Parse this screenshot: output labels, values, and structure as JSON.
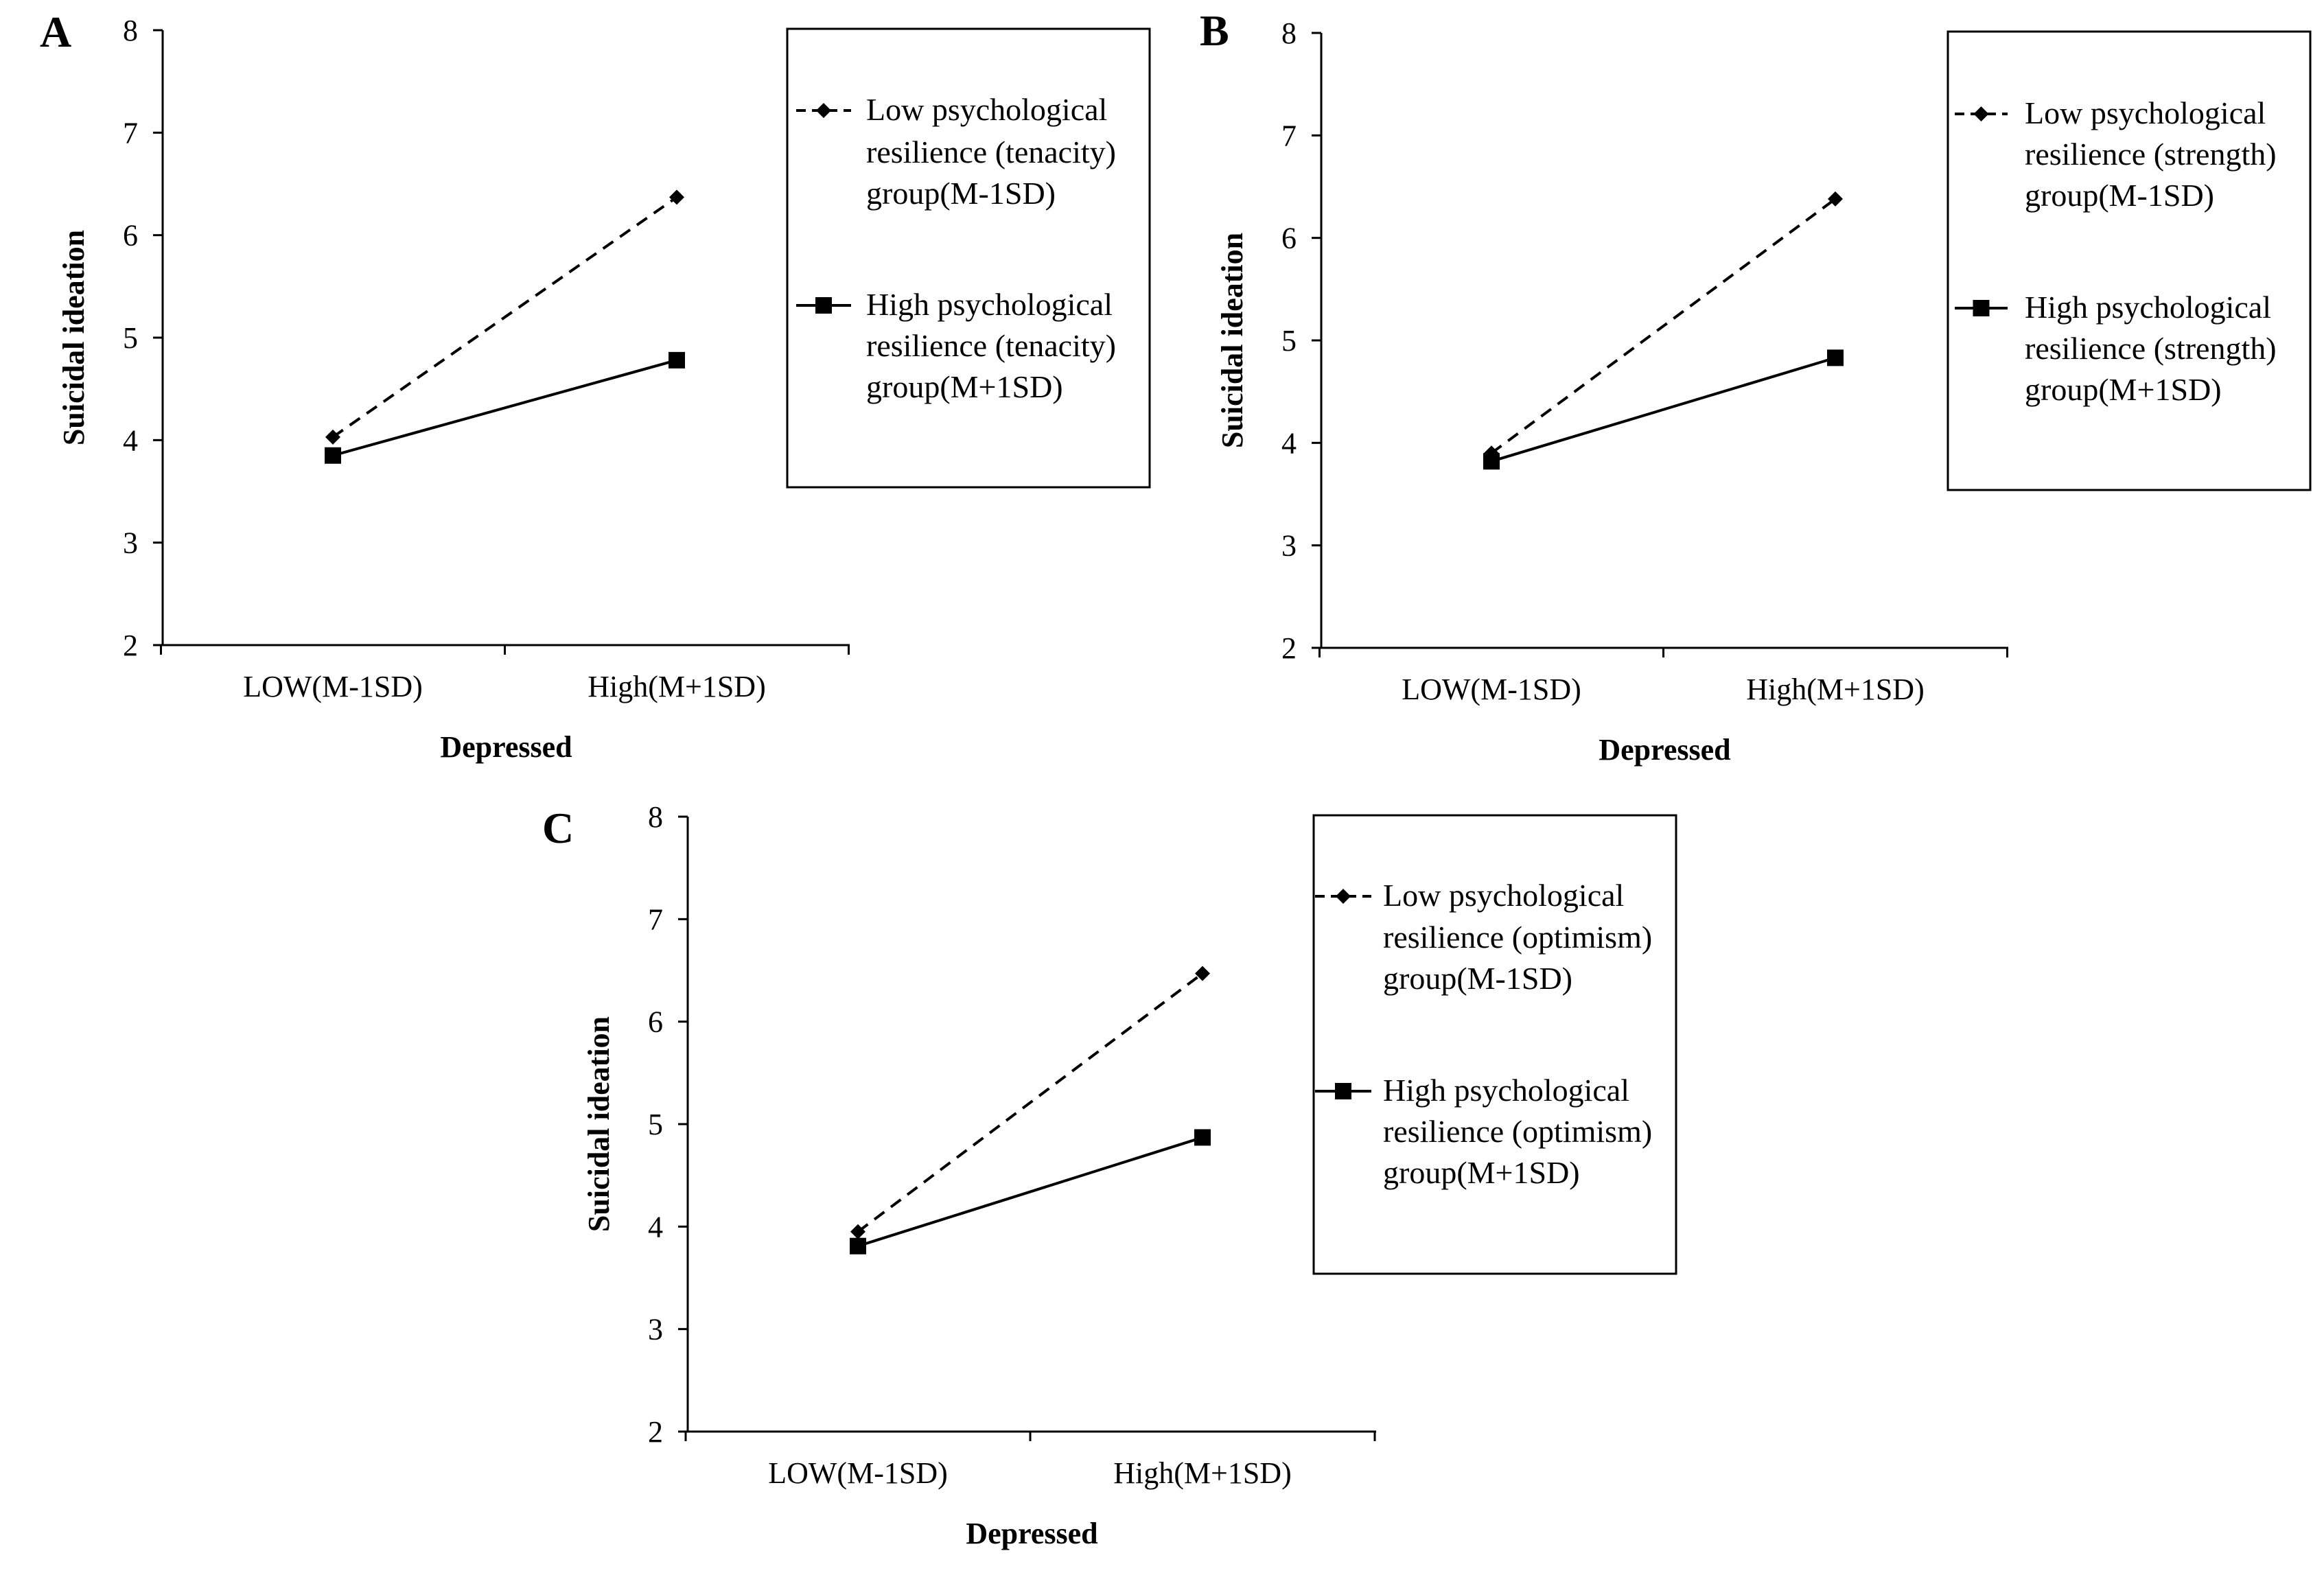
{
  "chart_data": [
    {
      "type": "line",
      "panel": "A",
      "xlabel": "Depressed",
      "ylabel": "Suicidal ideation",
      "ylim": [
        2,
        8
      ],
      "yticks": [
        2,
        3,
        4,
        5,
        6,
        7,
        8
      ],
      "categories": [
        "LOW(M-1SD)",
        "High(M+1SD)"
      ],
      "series": [
        {
          "name": "Low psychological resilience (tenacity) group(M-1SD)",
          "legend_lines": [
            "Low psychological",
            "resilience (tenacity)",
            "group(M-1SD)"
          ],
          "style": "dashed",
          "marker": "diamond",
          "values": [
            4.03,
            6.37
          ]
        },
        {
          "name": "High psychological resilience (tenacity) group(M+1SD)",
          "legend_lines": [
            "High psychological",
            "resilience (tenacity)",
            "group(M+1SD)"
          ],
          "style": "solid",
          "marker": "square",
          "values": [
            3.85,
            4.78
          ]
        }
      ]
    },
    {
      "type": "line",
      "panel": "B",
      "xlabel": "Depressed",
      "ylabel": "Suicidal ideation",
      "ylim": [
        2,
        8
      ],
      "yticks": [
        2,
        3,
        4,
        5,
        6,
        7,
        8
      ],
      "categories": [
        "LOW(M-1SD)",
        "High(M+1SD)"
      ],
      "series": [
        {
          "name": "Low psychological resilience (strength) group(M-1SD)",
          "legend_lines": [
            "Low psychological",
            "resilience (strength)",
            "group(M-1SD)"
          ],
          "style": "dashed",
          "marker": "diamond",
          "values": [
            3.9,
            6.38
          ]
        },
        {
          "name": "High psychological resilience (strength) group(M+1SD)",
          "legend_lines": [
            "High psychological",
            "resilience (strength)",
            "group(M+1SD)"
          ],
          "style": "solid",
          "marker": "square",
          "values": [
            3.82,
            4.83
          ]
        }
      ]
    },
    {
      "type": "line",
      "panel": "C",
      "xlabel": "Depressed",
      "ylabel": "Suicidal ideation",
      "ylim": [
        2,
        8
      ],
      "yticks": [
        2,
        3,
        4,
        5,
        6,
        7,
        8
      ],
      "categories": [
        "LOW(M-1SD)",
        "High(M+1SD)"
      ],
      "series": [
        {
          "name": "Low psychological resilience (optimism) group(M-1SD)",
          "legend_lines": [
            "Low psychological",
            "resilience (optimism)",
            "group(M-1SD)"
          ],
          "style": "dashed",
          "marker": "diamond",
          "values": [
            3.95,
            6.47
          ]
        },
        {
          "name": "High psychological resilience (optimism) group(M+1SD)",
          "legend_lines": [
            "High psychological",
            "resilience (optimism)",
            "group(M+1SD)"
          ],
          "style": "solid",
          "marker": "square",
          "values": [
            3.81,
            4.87
          ]
        }
      ]
    }
  ]
}
